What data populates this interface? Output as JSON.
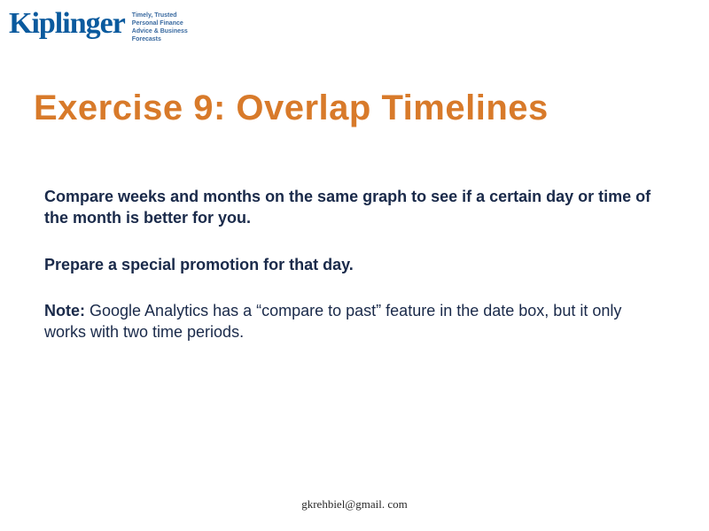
{
  "logo": {
    "brand": "Kiplinger",
    "tagline_l1": "Timely, Trusted",
    "tagline_l2": "Personal Finance",
    "tagline_l3": "Advice & Business",
    "tagline_l4": "Forecasts",
    "brand_color": "#0a5a9e",
    "tagline_color": "#3a6aa0"
  },
  "title": {
    "text": "Exercise 9: Overlap Timelines",
    "color": "#d87a2a",
    "fontsize": 40
  },
  "paragraphs": {
    "p1": "Compare weeks and months on the same graph to see if a certain day or time of the month is better for you.",
    "p2": "Prepare a special promotion for that day.",
    "p3_bold": "Note:",
    "p3_rest": " Google Analytics has a “compare to past” feature in the date box, but it only works with two time periods."
  },
  "footer": {
    "email": "gkrehbiel@gmail. com"
  },
  "colors": {
    "background": "#ffffff",
    "body_text": "#1a2a4a"
  }
}
